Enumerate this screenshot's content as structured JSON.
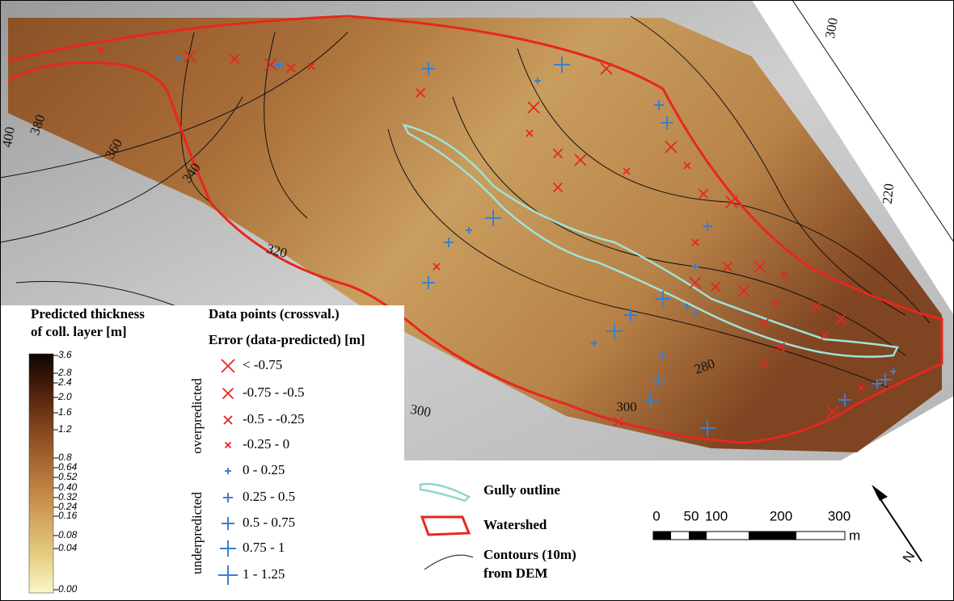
{
  "map": {
    "contour_labels": [
      "400",
      "380",
      "360",
      "340",
      "320",
      "300",
      "300",
      "280",
      "220",
      "300"
    ]
  },
  "legend_thickness": {
    "title_lines": [
      "Predicted thickness",
      "of coll. layer [m]"
    ],
    "ticks": [
      "3.6",
      "2.8",
      "2.4",
      "2.0",
      "1.6",
      "1.2",
      "0.8",
      "0.64",
      "0.52",
      "0.40",
      "0.32",
      "0.24",
      "0.16",
      "0.08",
      "0.04",
      "0.00"
    ]
  },
  "legend_points": {
    "title": "Data points (crossval.)",
    "subtitle": "Error (data-predicted) [m]",
    "classes": [
      "< -0.75",
      "-0.75 - -0.5",
      "-0.5 - -0.25",
      "-0.25 - 0",
      "0 - 0.25",
      "0.25 - 0.5",
      "0.5 - 0.75",
      "0.75 - 1",
      "1 - 1.25"
    ],
    "groups": [
      "overpredicted",
      "underpredicted"
    ]
  },
  "legend_features": {
    "gully": "Gully outline",
    "watershed": "Watershed",
    "contours": [
      "Contours (10m)",
      "from DEM"
    ]
  },
  "scale_bar": {
    "labels": [
      "0",
      "50",
      "100",
      "200",
      "300"
    ],
    "unit": "m"
  },
  "north_arrow": "N"
}
